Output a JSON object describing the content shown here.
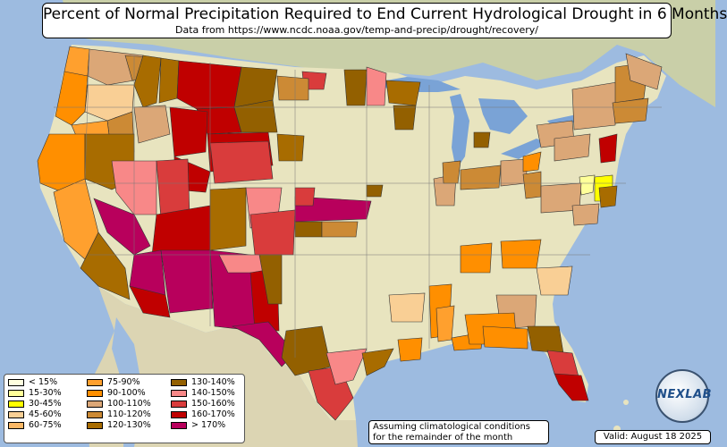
{
  "title": "Percent of Normal Precipitation Required to End Current Hydrological Drought in 6 Months",
  "subtitle": "Data from https://www.ncdc.noaa.gov/temp-and-precip/drought/recovery/",
  "legend": [
    {
      "label": "< 15%",
      "color": "#ffffe0"
    },
    {
      "label": "15-30%",
      "color": "#ffff99"
    },
    {
      "label": "30-45%",
      "color": "#ffff00"
    },
    {
      "label": "45-60%",
      "color": "#f9cf95"
    },
    {
      "label": "60-75%",
      "color": "#fbb866"
    },
    {
      "label": "75-90%",
      "color": "#ffa02e"
    },
    {
      "label": "90-100%",
      "color": "#ff8f00"
    },
    {
      "label": "100-110%",
      "color": "#dba777"
    },
    {
      "label": "110-120%",
      "color": "#cc8a35"
    },
    {
      "label": "120-130%",
      "color": "#a86c00"
    },
    {
      "label": "130-140%",
      "color": "#936000"
    },
    {
      "label": "140-150%",
      "color": "#f88888"
    },
    {
      "label": "150-160%",
      "color": "#d93c3c"
    },
    {
      "label": "160-170%",
      "color": "#c00000"
    },
    {
      "label": "> 170%",
      "color": "#b8005c"
    }
  ],
  "note_line1": "Assuming climatological conditions",
  "note_line2": "for the remainder of the month",
  "valid": "Valid: August 18 2025",
  "logo_text": "NEXLAB",
  "colors": {
    "ocean": "#9dbbe0",
    "land": "#e8e4bf",
    "mexico": "#dcd5b3",
    "lakes": "#7aa3d6"
  }
}
